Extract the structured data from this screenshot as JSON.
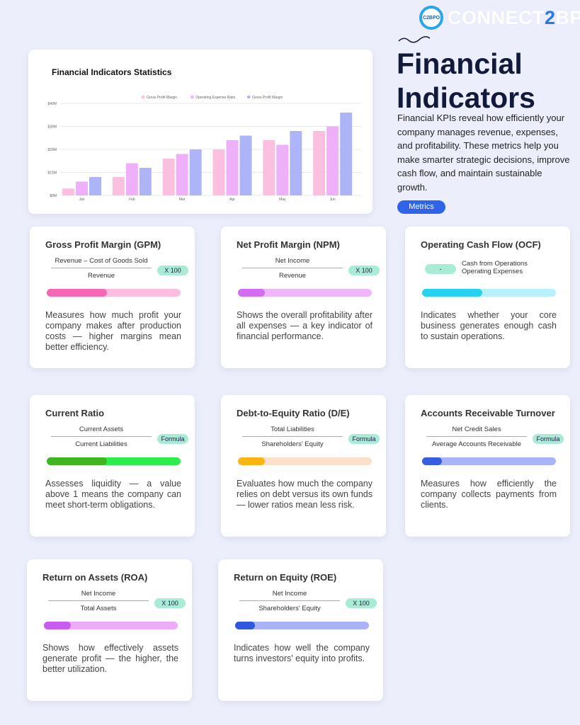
{
  "brand": {
    "logo_badge": "C2BPO",
    "name_part1": "CONNECT",
    "name_part2": "2",
    "name_part3": "BPO"
  },
  "hero": {
    "title_line1": "Financial",
    "title_line2": "Indicators",
    "description": "Financial KPIs reveal how efficiently your company manages revenue, expenses, and profitability. These metrics help you make smarter strategic decisions, improve cash flow, and maintain sustainable growth.",
    "pill": "Metrics"
  },
  "chart_data": {
    "type": "bar",
    "title": "Financial Indicators Statistics",
    "categories": [
      "Jan",
      "Feb",
      "Mar",
      "Apr",
      "May",
      "Jun"
    ],
    "series": [
      {
        "name": "Gross Profit Margin",
        "color": "#fbbfdf",
        "values": [
          3,
          8,
          16,
          20,
          24,
          28
        ]
      },
      {
        "name": "Operating Expense Ratio",
        "color": "#eeb0f8",
        "values": [
          6,
          14,
          18,
          24,
          22,
          30
        ]
      },
      {
        "name": "Gross Profit Margin",
        "color": "#adb5f8",
        "values": [
          8,
          12,
          20,
          26,
          28,
          36
        ]
      }
    ],
    "yticks": [
      "$0M",
      "$10M",
      "$20M",
      "$30M",
      "$40M"
    ],
    "ylim": [
      0,
      40
    ],
    "unit": "$M",
    "grid": true,
    "legend": "top-center"
  },
  "cards": [
    {
      "title": "Gross Profit Margin (GPM)",
      "type": "fraction",
      "numerator": "Revenue – Cost of Goods Sold",
      "denominator": "Revenue",
      "badge": "X 100",
      "progress": 0.45,
      "fill": "#f767b6",
      "track": "#fcbde0",
      "description": "Measures how much profit your company makes after production costs — higher margins mean better efficiency."
    },
    {
      "title": "Net Profit Margin (NPM)",
      "type": "fraction",
      "numerator": "Net Income",
      "denominator": "Revenue",
      "badge": "X 100",
      "progress": 0.2,
      "fill": "#d36cf2",
      "track": "#efb6fb",
      "description": "Shows the overall profitability after all expenses — a key indicator of financial performance."
    },
    {
      "title": "Operating Cash Flow (OCF)",
      "type": "difference",
      "line1": "Cash from Operations",
      "line2": "Operating Expenses",
      "badge": "-",
      "progress": 0.45,
      "fill": "#27d2f0",
      "track": "#b9f1fb",
      "description": "Indicates whether your core business generates enough cash to sustain operations."
    },
    {
      "title": "Current Ratio",
      "type": "fraction",
      "numerator": "Current Assets",
      "denominator": "Current Liabilities",
      "badge": "Formula",
      "progress": 0.45,
      "fill": "#3fb61f",
      "track": "#2ded4d",
      "description": "Assesses liquidity — a value above 1 means the company can meet short-term obligations."
    },
    {
      "title": "Debt-to-Equity Ratio (D/E)",
      "type": "fraction",
      "numerator": "Total Liabilities",
      "denominator": "Shareholders' Equity",
      "badge": "Formula",
      "progress": 0.2,
      "fill": "#fbb513",
      "track": "#fde0cb",
      "description": "Evaluates how much the company relies on debt versus its own funds — lower ratios mean less risk."
    },
    {
      "title": "Accounts Receivable Turnover",
      "type": "fraction",
      "numerator": "Net Credit Sales",
      "denominator": "Average Accounts Receivable",
      "badge": "Formula",
      "progress": 0.15,
      "fill": "#385de0",
      "track": "#a9b3f7",
      "description": "Measures how efficiently the company collects payments from clients."
    },
    {
      "title": "Return on Assets (ROA)",
      "type": "fraction",
      "numerator": "Net Income",
      "denominator": "Total Assets",
      "badge": "X 100",
      "progress": 0.2,
      "fill": "#c95cf0",
      "track": "#eeabf8",
      "description": "Shows how effectively assets generate profit — the higher, the better utilization."
    },
    {
      "title": "Return on Equity (ROE)",
      "type": "fraction",
      "numerator": "Net Income",
      "denominator": "Shareholders' Equity",
      "badge": "X 100",
      "progress": 0.15,
      "fill": "#2f57df",
      "track": "#a9b3f7",
      "description": "Indicates how well the company turns investors' equity into profits."
    }
  ]
}
